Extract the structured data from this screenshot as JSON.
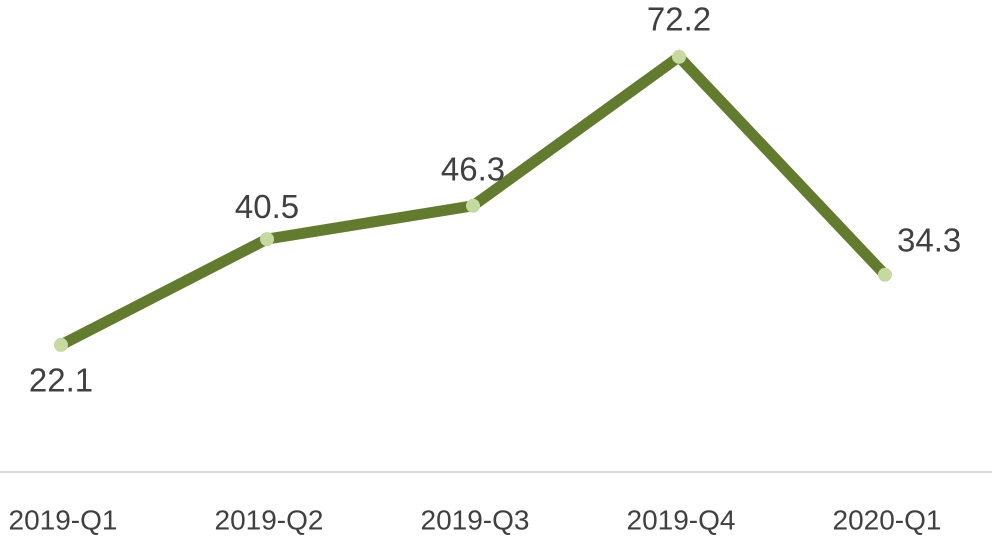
{
  "chart_data": {
    "type": "line",
    "categories": [
      "2019-Q1",
      "2019-Q2",
      "2019-Q3",
      "2019-Q4",
      "2020-Q1"
    ],
    "values": [
      22.1,
      40.5,
      46.3,
      72.2,
      34.3
    ],
    "color": "#637b2f",
    "marker_color": "#c5d9a0",
    "ylim": [
      0,
      80
    ]
  }
}
